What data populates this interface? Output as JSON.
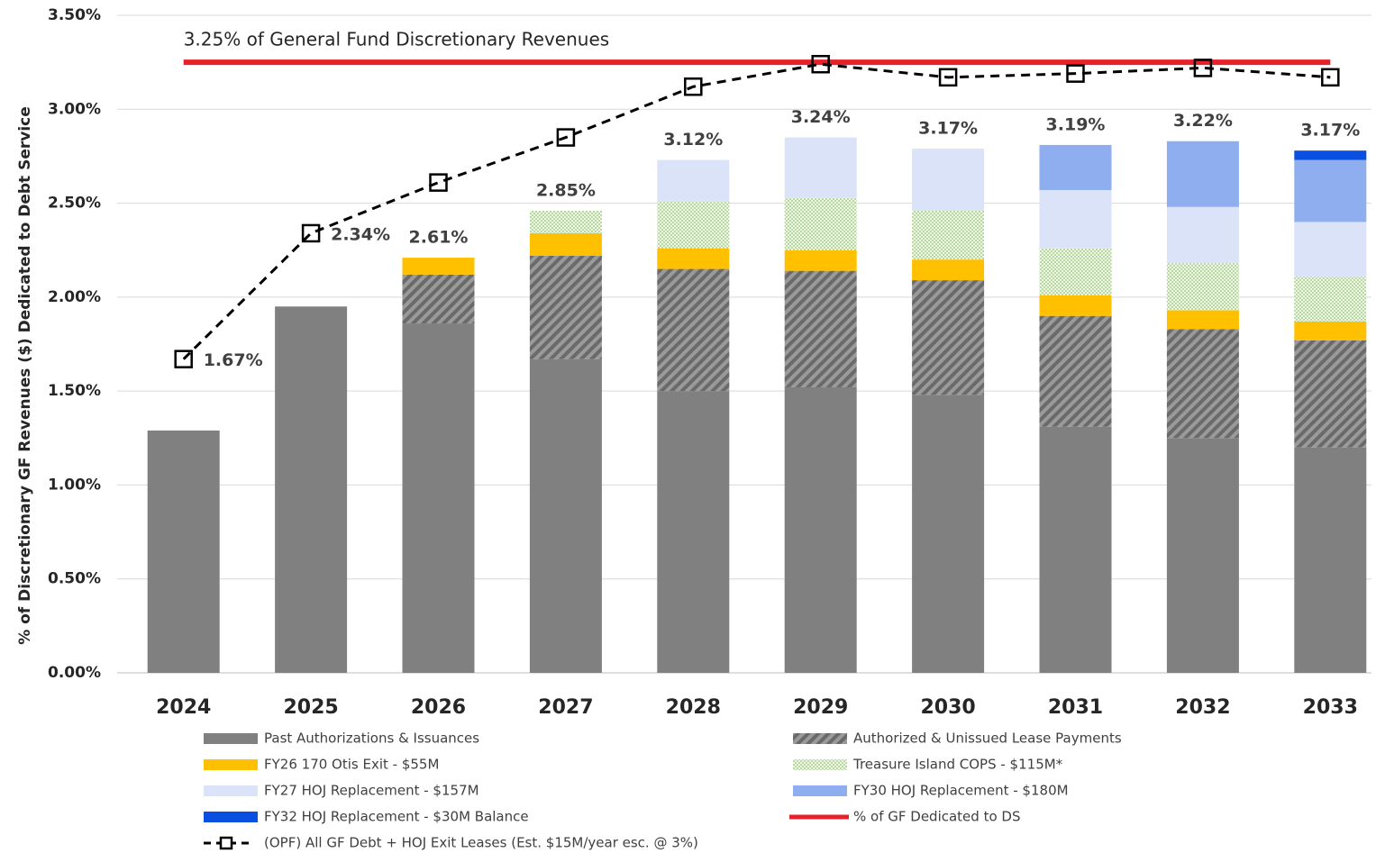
{
  "chart_data": {
    "type": "bar",
    "stacked": true,
    "y_label": "% of Discretionary GF Revenues ($) Dedicated to Debt Service",
    "categories": [
      "2024",
      "2025",
      "2026",
      "2027",
      "2028",
      "2029",
      "2030",
      "2031",
      "2032",
      "2033"
    ],
    "ylim": [
      0,
      3.5
    ],
    "yticks": [
      {
        "value": 0,
        "label": "0.00%"
      },
      {
        "value": 0.5,
        "label": "0.50%"
      },
      {
        "value": 1,
        "label": "1.00%"
      },
      {
        "value": 1.5,
        "label": "1.50%"
      },
      {
        "value": 2,
        "label": "2.00%"
      },
      {
        "value": 2.5,
        "label": "2.50%"
      },
      {
        "value": 3,
        "label": "3.00%"
      },
      {
        "value": 3.5,
        "label": "3.50%"
      }
    ],
    "grid": true,
    "series": [
      {
        "name": "Past Authorizations & Issuances",
        "color": "#808080",
        "pattern": "solid",
        "values": [
          1.29,
          1.95,
          1.86,
          1.67,
          1.5,
          1.52,
          1.48,
          1.31,
          1.25,
          1.2
        ]
      },
      {
        "name": "Authorized & Unissued Lease Payments",
        "color": "#6e6e6e",
        "pattern": "hatch",
        "values": [
          null,
          null,
          0.26,
          0.55,
          0.65,
          0.62,
          0.61,
          0.59,
          0.58,
          0.57
        ]
      },
      {
        "name": "FY26 170 Otis Exit - $55M",
        "color": "#ffc000",
        "pattern": "solid",
        "values": [
          null,
          null,
          0.09,
          0.12,
          0.11,
          0.11,
          0.11,
          0.11,
          0.1,
          0.1
        ]
      },
      {
        "name": "Treasure Island COPS - $115M*",
        "color": "#a9d18e",
        "pattern": "dots",
        "values": [
          null,
          null,
          null,
          0.12,
          0.25,
          0.28,
          0.26,
          0.25,
          0.25,
          0.24
        ]
      },
      {
        "name": "FY27 HOJ Replacement - $157M",
        "color": "#dae3f8",
        "pattern": "solid",
        "values": [
          null,
          null,
          null,
          null,
          0.22,
          0.32,
          0.33,
          0.31,
          0.3,
          0.29
        ]
      },
      {
        "name": "FY30 HOJ Replacement - $180M",
        "color": "#8eaef0",
        "pattern": "solid",
        "values": [
          null,
          null,
          null,
          null,
          null,
          null,
          null,
          0.24,
          0.35,
          0.33
        ]
      },
      {
        "name": "FY32 HOJ Replacement - $30M Balance",
        "color": "#0a50e0",
        "pattern": "solid",
        "values": [
          null,
          null,
          null,
          null,
          null,
          null,
          null,
          null,
          null,
          0.05
        ]
      }
    ],
    "reference_line": {
      "name": "% of GF Dedicated to DS",
      "color": "#e8202a",
      "value": 3.25,
      "annotation": "3.25% of General Fund Discretionary Revenues"
    },
    "line_series": {
      "name": "(OPF) All GF Debt + HOJ Exit Leases (Est. $15M/year esc. @ 3%)",
      "color": "#000000",
      "values": [
        1.67,
        2.34,
        2.61,
        2.85,
        3.12,
        3.24,
        3.17,
        3.19,
        3.22,
        3.17
      ],
      "value_labels": [
        "1.67%",
        "2.34%",
        "2.61%",
        "2.85%",
        "3.12%",
        "3.24%",
        "3.17%",
        "3.19%",
        "3.22%",
        "3.17%"
      ]
    }
  }
}
